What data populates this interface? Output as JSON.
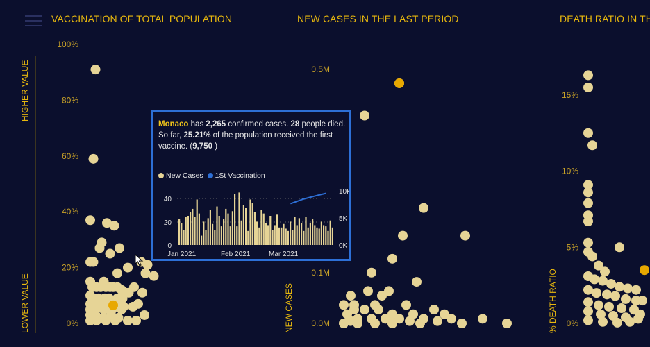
{
  "panels": [
    {
      "title": "VACCINATION OF TOTAL POPULATION",
      "y_ticks": [
        "100%",
        "80%",
        "60%",
        "40%",
        "20%",
        "0%"
      ],
      "y_label_top": "HIGHER VALUE",
      "y_label_bottom": "LOWER VALUE"
    },
    {
      "title": "NEW CASES IN THE LAST PERIOD",
      "y_ticks": [
        "0.5M",
        "0.1M",
        "0.0M"
      ],
      "y_label": "NEW CASES"
    },
    {
      "title": "DEATH RATIO IN THE",
      "y_ticks": [
        "15%",
        "10%",
        "5%",
        "0%"
      ],
      "y_label": "% DEATH RATIO"
    }
  ],
  "colors": {
    "background": "#0b0f2d",
    "accent": "#e8b80e",
    "point": "#e6d496",
    "highlight": "#e8a800",
    "tooltip_border": "#2d6fd6",
    "vaccination_line": "#2d6fd6"
  },
  "tooltip": {
    "country": "Monaco",
    "t1": " has ",
    "cases": "2,265",
    "t2": " confirmed cases. ",
    "deaths": "28",
    "t3": " people died. So far, ",
    "pct": "25.21%",
    "t4": " of the population received the first vaccine. (",
    "vaccinated": "9,750",
    "t5": " )",
    "legend_cases": "New Cases",
    "legend_vacc": "1St Vaccination",
    "left_ticks": [
      "40",
      "20",
      "0"
    ],
    "right_ticks": [
      "10K",
      "5K",
      "0K"
    ],
    "x_ticks": [
      "Jan 2021",
      "Feb 2021",
      "Mar 2021"
    ]
  },
  "chart_data": [
    {
      "type": "scatter",
      "title": "VACCINATION OF TOTAL POPULATION",
      "ylim": [
        0,
        100
      ],
      "points": [
        [
          0.5,
          91
        ],
        [
          0.3,
          59
        ],
        [
          0,
          37
        ],
        [
          1.6,
          36
        ],
        [
          2.3,
          35
        ],
        [
          1.1,
          29
        ],
        [
          0.9,
          27
        ],
        [
          1.9,
          25
        ],
        [
          2.8,
          27
        ],
        [
          0.3,
          22
        ],
        [
          0,
          22
        ],
        [
          4.9,
          22
        ],
        [
          3.6,
          20
        ],
        [
          5.5,
          21
        ],
        [
          6.1,
          17
        ],
        [
          5.3,
          18
        ],
        [
          2.6,
          18
        ],
        [
          1.3,
          15
        ],
        [
          0,
          15
        ],
        [
          0.2,
          13
        ],
        [
          0.6,
          13
        ],
        [
          1,
          13
        ],
        [
          1.5,
          13
        ],
        [
          1.9,
          13
        ],
        [
          2.2,
          13
        ],
        [
          2.6,
          13
        ],
        [
          3,
          12
        ],
        [
          3.4,
          11
        ],
        [
          3.7,
          11
        ],
        [
          4.2,
          13
        ],
        [
          5,
          11
        ],
        [
          0,
          10
        ],
        [
          0.3,
          9
        ],
        [
          0.8,
          9
        ],
        [
          1.4,
          9
        ],
        [
          1.8,
          9
        ],
        [
          2.6,
          9
        ],
        [
          3.1,
          9
        ],
        [
          0,
          7
        ],
        [
          0.4,
          7
        ],
        [
          1.1,
          7
        ],
        [
          1.8,
          6
        ],
        [
          2.5,
          7
        ],
        [
          3.2,
          6
        ],
        [
          4.1,
          6
        ],
        [
          0,
          5
        ],
        [
          0.5,
          5
        ],
        [
          1.3,
          5
        ],
        [
          2.1,
          5
        ],
        [
          3,
          5
        ],
        [
          0,
          3
        ],
        [
          0.5,
          3
        ],
        [
          1.2,
          2
        ],
        [
          2,
          3
        ],
        [
          2.7,
          2
        ],
        [
          0,
          1
        ],
        [
          0.6,
          1
        ],
        [
          1.5,
          1
        ],
        [
          2.4,
          1
        ],
        [
          3.6,
          1
        ],
        [
          4.4,
          1
        ],
        [
          5.2,
          3
        ],
        [
          4.6,
          7
        ],
        [
          2.2,
          6
        ]
      ],
      "highlight": [
        2.2,
        6.5
      ]
    },
    {
      "type": "scatter",
      "title": "NEW CASES IN THE LAST PERIOD",
      "ylim": [
        0,
        0.55
      ],
      "points": [
        [
          1.6,
          0.52
        ],
        [
          0.6,
          0.45
        ],
        [
          2.3,
          0.25
        ],
        [
          3.5,
          0.19
        ],
        [
          1.7,
          0.19
        ],
        [
          1.4,
          0.14
        ],
        [
          0.8,
          0.11
        ],
        [
          2.1,
          0.09
        ],
        [
          0.7,
          0.07
        ],
        [
          1.3,
          0.07
        ],
        [
          0.2,
          0.06
        ],
        [
          1.1,
          0.06
        ],
        [
          0.3,
          0.04
        ],
        [
          0.9,
          0.04
        ],
        [
          1.8,
          0.04
        ],
        [
          2.6,
          0.03
        ],
        [
          0,
          0.04
        ],
        [
          0.3,
          0.03
        ],
        [
          0.6,
          0.03
        ],
        [
          1.0,
          0.03
        ],
        [
          1.4,
          0.02
        ],
        [
          2.0,
          0.02
        ],
        [
          2.9,
          0.02
        ],
        [
          0.1,
          0.02
        ],
        [
          0.4,
          0.01
        ],
        [
          0.8,
          0.01
        ],
        [
          1.2,
          0.01
        ],
        [
          1.6,
          0.01
        ],
        [
          2.3,
          0.01
        ],
        [
          3.1,
          0.01
        ],
        [
          4.0,
          0.01
        ],
        [
          4.7,
          0.0
        ],
        [
          0,
          0.0
        ],
        [
          0.4,
          0.0
        ],
        [
          0.9,
          0.0
        ],
        [
          1.4,
          0.0
        ],
        [
          2.2,
          0.0
        ],
        [
          3.4,
          0.0
        ],
        [
          0.2,
          0.005
        ],
        [
          1.9,
          0.005
        ],
        [
          2.7,
          0.005
        ]
      ],
      "highlight": [
        1.6,
        0.52
      ]
    },
    {
      "type": "scatter",
      "title": "DEATH RATIO IN THE",
      "ylim": [
        0,
        16.5
      ],
      "points": [
        [
          0,
          16.3
        ],
        [
          0,
          15.5
        ],
        [
          0,
          12.5
        ],
        [
          0.2,
          11.7
        ],
        [
          0,
          9.1
        ],
        [
          0,
          8.6
        ],
        [
          0,
          7.9
        ],
        [
          0,
          7.1
        ],
        [
          0,
          6.7
        ],
        [
          0,
          5.3
        ],
        [
          0,
          4.7
        ],
        [
          0.2,
          4.4
        ],
        [
          0.5,
          3.8
        ],
        [
          0.8,
          3.4
        ],
        [
          1.5,
          5
        ],
        [
          0,
          3.1
        ],
        [
          0.3,
          2.9
        ],
        [
          0.7,
          2.8
        ],
        [
          1.1,
          2.6
        ],
        [
          1.5,
          2.4
        ],
        [
          1.9,
          2.3
        ],
        [
          2.3,
          2.2
        ],
        [
          0,
          2.2
        ],
        [
          0.4,
          2.0
        ],
        [
          0.9,
          1.9
        ],
        [
          1.3,
          1.8
        ],
        [
          1.8,
          1.6
        ],
        [
          2.3,
          1.5
        ],
        [
          0,
          1.4
        ],
        [
          0.5,
          1.2
        ],
        [
          1.0,
          1.1
        ],
        [
          1.6,
          1.0
        ],
        [
          2.2,
          0.9
        ],
        [
          0,
          0.8
        ],
        [
          0.6,
          0.6
        ],
        [
          1.2,
          0.5
        ],
        [
          1.8,
          0.4
        ],
        [
          2.4,
          0.3
        ],
        [
          0,
          0.2
        ],
        [
          0.7,
          0.1
        ],
        [
          1.4,
          0.05
        ],
        [
          2.0,
          0.1
        ],
        [
          2.5,
          0.6
        ],
        [
          2.6,
          1.5
        ]
      ],
      "highlight": [
        2.7,
        3.5
      ]
    },
    {
      "type": "bar",
      "title": "",
      "series": [
        {
          "name": "New Cases",
          "type": "bar",
          "axis": "left",
          "ylim": [
            0,
            50
          ],
          "values": [
            22,
            19,
            13,
            24,
            25,
            28,
            31,
            24,
            39,
            27,
            8,
            20,
            13,
            23,
            30,
            18,
            13,
            33,
            25,
            16,
            22,
            31,
            27,
            16,
            29,
            44,
            16,
            45,
            21,
            34,
            32,
            12,
            39,
            36,
            28,
            20,
            15,
            30,
            27,
            19,
            17,
            25,
            13,
            17,
            26,
            15,
            15,
            18,
            14,
            12,
            20,
            13,
            24,
            17,
            23,
            19,
            12,
            24,
            15,
            19,
            22,
            17,
            15,
            14,
            20,
            17,
            16,
            12,
            21,
            15
          ]
        },
        {
          "name": "1St Vaccination",
          "type": "line",
          "axis": "right",
          "ylim": [
            0,
            11000
          ],
          "x_start_fraction": 0.72,
          "values": [
            7800,
            8200,
            8600,
            8900,
            9200,
            9500,
            9750
          ]
        }
      ],
      "x_ticks": [
        "Jan 2021",
        "Feb 2021",
        "Mar 2021"
      ],
      "left_ticks": [
        40,
        20,
        0
      ],
      "right_ticks": [
        "10K",
        "5K",
        "0K"
      ]
    }
  ]
}
